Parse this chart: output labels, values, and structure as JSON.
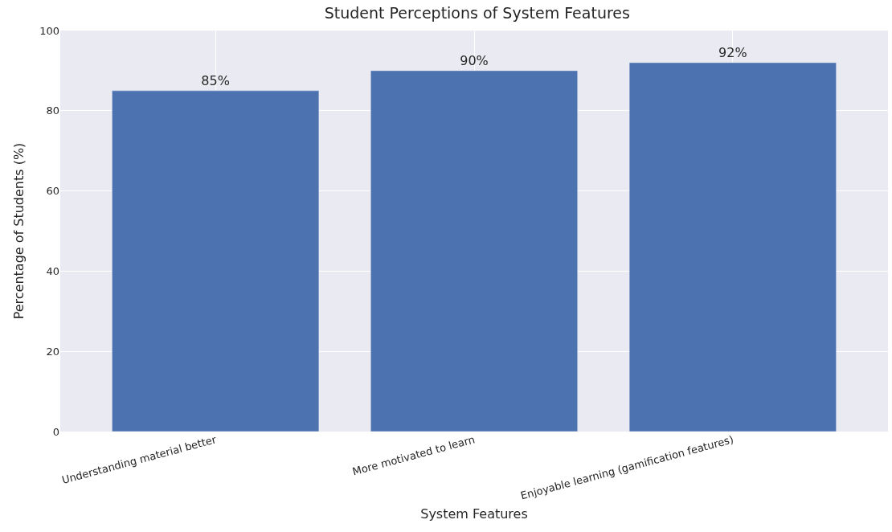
{
  "chart_data": {
    "type": "bar",
    "title": "Student Perceptions of System Features",
    "xlabel": "System Features",
    "ylabel": "Percentage of Students (%)",
    "categories": [
      "Understanding material better",
      "More motivated to learn",
      "Enjoyable learning (gamification features)"
    ],
    "values": [
      85,
      90,
      92
    ],
    "value_labels": [
      "85%",
      "90%",
      "92%"
    ],
    "color": "#4c72b0",
    "ylim": [
      0,
      100
    ],
    "yticks": [
      0,
      20,
      40,
      60,
      80,
      100
    ],
    "grid": true
  }
}
